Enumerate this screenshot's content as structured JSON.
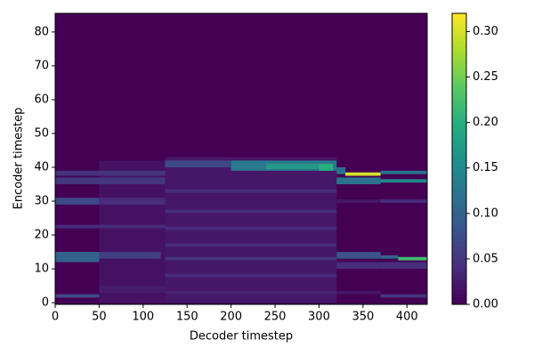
{
  "chart_data": {
    "type": "heatmap",
    "xlabel": "Decoder timestep",
    "ylabel": "Encoder timestep",
    "xlim": [
      0,
      423
    ],
    "ylim": [
      -0.5,
      85.5
    ],
    "xticks": [
      0,
      50,
      100,
      150,
      200,
      250,
      300,
      350,
      400
    ],
    "yticks": [
      0,
      10,
      20,
      30,
      40,
      50,
      60,
      70,
      80
    ],
    "clim": [
      0,
      0.32
    ],
    "cticks": [
      {
        "value": 0,
        "label": "0.00"
      },
      {
        "value": 0.05,
        "label": "0.05"
      },
      {
        "value": 0.1,
        "label": "0.10"
      },
      {
        "value": 0.15,
        "label": "0.15"
      },
      {
        "value": 0.2,
        "label": "0.20"
      },
      {
        "value": 0.25,
        "label": "0.25"
      },
      {
        "value": 0.3,
        "label": "0.30"
      }
    ],
    "colormap": [
      "#440154",
      "#472d7b",
      "#3b528b",
      "#2c728e",
      "#21918c",
      "#28ae80",
      "#5ec962",
      "#addc30",
      "#fde725"
    ],
    "cells": [
      {
        "x": [
          0,
          423
        ],
        "y": [
          -0.5,
          85.5
        ],
        "value": 0
      },
      {
        "x": [
          50,
          125
        ],
        "y": [
          0,
          42
        ],
        "value": 0.015
      },
      {
        "x": [
          125,
          320
        ],
        "y": [
          0,
          43
        ],
        "value": 0.02
      },
      {
        "x": [
          0,
          50
        ],
        "y": [
          1.5,
          2.5
        ],
        "value": 0.07
      },
      {
        "x": [
          50,
          125
        ],
        "y": [
          3,
          5
        ],
        "value": 0.025
      },
      {
        "x": [
          0,
          50
        ],
        "y": [
          12,
          15
        ],
        "value": 0.1
      },
      {
        "x": [
          50,
          120
        ],
        "y": [
          13,
          15
        ],
        "value": 0.06
      },
      {
        "x": [
          0,
          125
        ],
        "y": [
          22,
          23
        ],
        "value": 0.04
      },
      {
        "x": [
          0,
          50
        ],
        "y": [
          29,
          31
        ],
        "value": 0.07
      },
      {
        "x": [
          50,
          125
        ],
        "y": [
          29,
          31
        ],
        "value": 0.04
      },
      {
        "x": [
          0,
          125
        ],
        "y": [
          35,
          37
        ],
        "value": 0.05
      },
      {
        "x": [
          0,
          125
        ],
        "y": [
          37.5,
          39
        ],
        "value": 0.045
      },
      {
        "x": [
          125,
          320
        ],
        "y": [
          2.5,
          3.5
        ],
        "value": 0.03
      },
      {
        "x": [
          125,
          320
        ],
        "y": [
          7.5,
          8.5
        ],
        "value": 0.04
      },
      {
        "x": [
          125,
          320
        ],
        "y": [
          12.5,
          13.5
        ],
        "value": 0.05
      },
      {
        "x": [
          125,
          320
        ],
        "y": [
          16.5,
          17.5
        ],
        "value": 0.04
      },
      {
        "x": [
          125,
          320
        ],
        "y": [
          21.5,
          22.5
        ],
        "value": 0.04
      },
      {
        "x": [
          125,
          320
        ],
        "y": [
          26.5,
          27.5
        ],
        "value": 0.04
      },
      {
        "x": [
          125,
          320
        ],
        "y": [
          32.5,
          33.5
        ],
        "value": 0.04
      },
      {
        "x": [
          125,
          200
        ],
        "y": [
          40,
          42
        ],
        "value": 0.07
      },
      {
        "x": [
          200,
          320
        ],
        "y": [
          39,
          42
        ],
        "value": 0.13
      },
      {
        "x": [
          240,
          300
        ],
        "y": [
          39.5,
          41
        ],
        "value": 0.17
      },
      {
        "x": [
          300,
          316
        ],
        "y": [
          39,
          41
        ],
        "value": 0.2
      },
      {
        "x": [
          320,
          370
        ],
        "y": [
          2.5,
          3.5
        ],
        "value": 0.02
      },
      {
        "x": [
          320,
          370
        ],
        "y": [
          10,
          12
        ],
        "value": 0.04
      },
      {
        "x": [
          320,
          370
        ],
        "y": [
          13,
          15
        ],
        "value": 0.08
      },
      {
        "x": [
          320,
          370
        ],
        "y": [
          29.5,
          30.5
        ],
        "value": 0.02
      },
      {
        "x": [
          320,
          370
        ],
        "y": [
          35,
          37
        ],
        "value": 0.12
      },
      {
        "x": [
          320,
          330
        ],
        "y": [
          38,
          40
        ],
        "value": 0.12
      },
      {
        "x": [
          330,
          370
        ],
        "y": [
          37.5,
          38.5
        ],
        "value": 0.3
      },
      {
        "x": [
          370,
          423
        ],
        "y": [
          1.5,
          2.5
        ],
        "value": 0.05
      },
      {
        "x": [
          370,
          423
        ],
        "y": [
          10,
          12
        ],
        "value": 0.04
      },
      {
        "x": [
          370,
          390
        ],
        "y": [
          13,
          14
        ],
        "value": 0.1
      },
      {
        "x": [
          390,
          423
        ],
        "y": [
          12.5,
          13.5
        ],
        "value": 0.22
      },
      {
        "x": [
          370,
          423
        ],
        "y": [
          29.5,
          30.5
        ],
        "value": 0.04
      },
      {
        "x": [
          370,
          423
        ],
        "y": [
          35.5,
          36.5
        ],
        "value": 0.15
      },
      {
        "x": [
          370,
          423
        ],
        "y": [
          38,
          39
        ],
        "value": 0.12
      }
    ]
  }
}
